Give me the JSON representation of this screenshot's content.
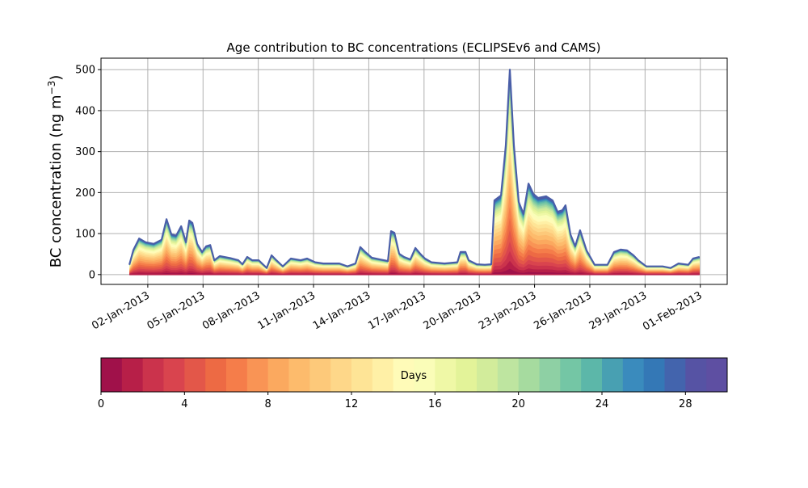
{
  "chart_data": {
    "type": "area",
    "stacked": true,
    "title": "Age contribution to BC concentrations (ECLIPSEv6 and CAMS)",
    "ylabel": "BC concentration (ng m",
    "ylabel_sup": "−3",
    "ylabel_close": ")",
    "xlabel": "",
    "xlim_days": [
      -1.54,
      32.46
    ],
    "ylim": [
      -24,
      528
    ],
    "grid": true,
    "yticks": [
      0,
      100,
      200,
      300,
      400,
      500
    ],
    "xticks": [
      {
        "day": 1,
        "label": "02-Jan-2013"
      },
      {
        "day": 4,
        "label": "05-Jan-2013"
      },
      {
        "day": 7,
        "label": "08-Jan-2013"
      },
      {
        "day": 10,
        "label": "11-Jan-2013"
      },
      {
        "day": 13,
        "label": "14-Jan-2013"
      },
      {
        "day": 16,
        "label": "17-Jan-2013"
      },
      {
        "day": 19,
        "label": "20-Jan-2013"
      },
      {
        "day": 22,
        "label": "23-Jan-2013"
      },
      {
        "day": 25,
        "label": "26-Jan-2013"
      },
      {
        "day": 28,
        "label": "29-Jan-2013"
      },
      {
        "day": 31,
        "label": "01-Feb-2013"
      }
    ],
    "total": {
      "x_days": [
        0,
        0.22,
        0.53,
        0.88,
        1.32,
        1.75,
        2.02,
        2.28,
        2.54,
        2.81,
        3.07,
        3.25,
        3.42,
        3.68,
        3.95,
        4.17,
        4.39,
        4.61,
        4.91,
        5.48,
        5.92,
        6.14,
        6.4,
        6.67,
        7.02,
        7.46,
        7.72,
        7.98,
        8.33,
        8.77,
        9.3,
        9.65,
        10.09,
        10.53,
        10.96,
        11.4,
        11.84,
        12.28,
        12.54,
        12.81,
        13.16,
        13.6,
        14.04,
        14.21,
        14.39,
        14.65,
        14.91,
        15.26,
        15.53,
        15.79,
        16.05,
        16.4,
        17.11,
        17.81,
        17.98,
        18.25,
        18.42,
        18.86,
        19.3,
        19.65,
        19.82,
        20.18,
        20.44,
        20.66,
        20.88,
        21.14,
        21.4,
        21.67,
        21.93,
        22.19,
        22.63,
        22.98,
        23.25,
        23.51,
        23.68,
        23.95,
        24.21,
        24.47,
        24.82,
        25.26,
        25.96,
        26.32,
        26.67,
        27.02,
        27.37,
        27.63,
        28.07,
        28.95,
        29.39,
        29.82,
        30.35,
        30.61,
        30.96
      ],
      "values": [
        24,
        60,
        88,
        79,
        75,
        85,
        135,
        98,
        95,
        118,
        79,
        132,
        126,
        75,
        55,
        69,
        72,
        35,
        45,
        40,
        35,
        25,
        43,
        35,
        35,
        16,
        47,
        35,
        20,
        39,
        35,
        39,
        30,
        27,
        27,
        27,
        20,
        27,
        67,
        55,
        41,
        37,
        33,
        106,
        102,
        51,
        43,
        37,
        65,
        51,
        39,
        30,
        27,
        30,
        55,
        55,
        35,
        25,
        24,
        25,
        181,
        193,
        315,
        500,
        315,
        177,
        148,
        222,
        197,
        187,
        191,
        181,
        153,
        157,
        169,
        98,
        69,
        108,
        59,
        24,
        24,
        55,
        61,
        59,
        47,
        35,
        20,
        20,
        16,
        27,
        24,
        39,
        43
      ]
    },
    "age_share_weights": [
      3,
      4,
      5,
      5,
      6,
      6,
      6,
      6,
      6,
      6,
      5,
      5,
      5,
      4,
      4,
      4,
      3,
      3,
      3,
      2,
      2,
      2,
      2,
      1.5,
      1.5,
      1,
      1,
      1,
      1,
      1
    ],
    "outline_color": "#4a5ea8",
    "colorbar": {
      "label": "Days",
      "range": [
        0,
        30
      ],
      "ticks": [
        0,
        4,
        8,
        12,
        16,
        20,
        24,
        28
      ],
      "colors": [
        "#a0114a",
        "#b71f48",
        "#cb334c",
        "#d9444e",
        "#e35749",
        "#ed6a44",
        "#f57d4a",
        "#f99455",
        "#fba95f",
        "#fdbb6c",
        "#fdc97a",
        "#fed789",
        "#fee496",
        "#fff0a6",
        "#fffbb8",
        "#fafdb8",
        "#eff8a6",
        "#e3f399",
        "#d2ec9b",
        "#bee5a0",
        "#a6db9f",
        "#8ed0a4",
        "#74c6a5",
        "#5cb7a9",
        "#48a0b2",
        "#3a8bbd",
        "#3478b6",
        "#4364ad",
        "#5653a4",
        "#5e4fa2"
      ]
    }
  }
}
